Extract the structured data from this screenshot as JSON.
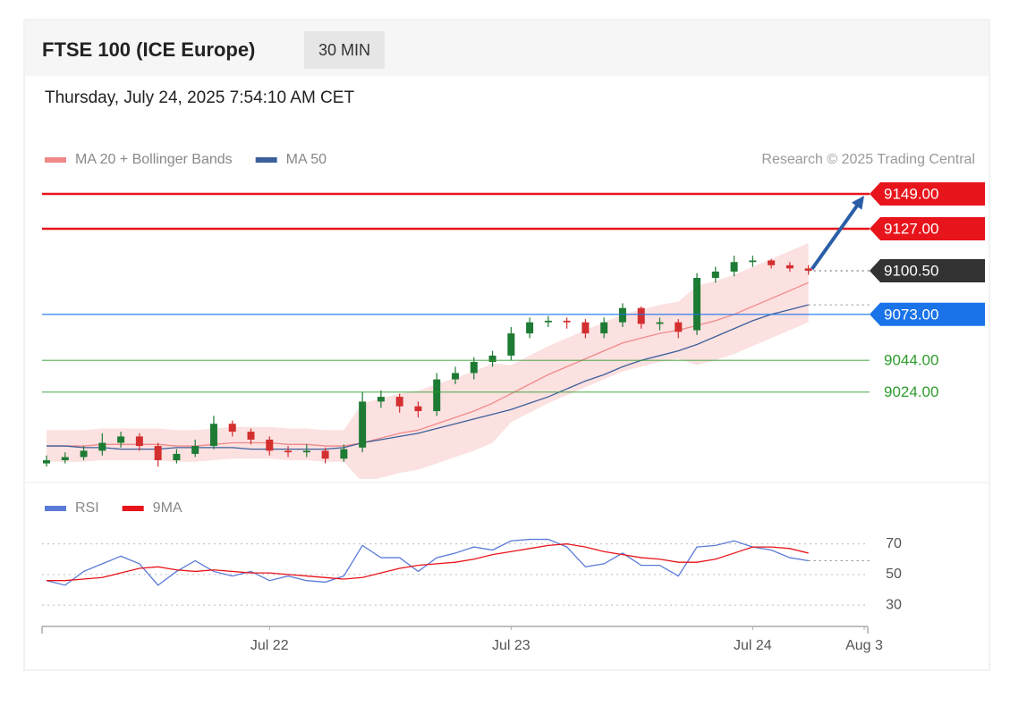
{
  "header": {
    "title": "FTSE 100 (ICE Europe)",
    "timeframe": "30 MIN",
    "datetime": "Thursday, July 24, 2025 7:54:10 AM CET",
    "credit": "Research © 2025 Trading Central"
  },
  "chart_data": [
    {
      "type": "candlestick",
      "x": [
        0,
        1,
        2,
        3,
        4,
        5,
        6,
        7,
        8,
        9,
        10,
        11,
        12,
        13,
        14,
        15,
        16,
        17,
        18,
        19,
        20,
        21,
        22,
        23,
        24,
        25,
        26,
        27,
        28,
        29,
        30,
        31,
        32,
        33,
        34,
        35,
        36,
        37,
        38,
        39,
        40,
        41
      ],
      "open": [
        8979,
        8981,
        8983,
        8987,
        8992,
        8996,
        8990,
        8981,
        8985,
        8990,
        9004,
        8999,
        8994,
        8987,
        8986,
        8987,
        8982,
        8989,
        9018,
        9021,
        9015,
        9012,
        9032,
        9036,
        9043,
        9047,
        9061,
        9068,
        9069,
        9068,
        9061,
        9068,
        9077,
        9067,
        9068,
        9063,
        9096,
        9100,
        9106,
        9107,
        9104,
        9102
      ],
      "high": [
        8984,
        8986,
        8990,
        8998,
        8999,
        8998,
        8992,
        8988,
        8994,
        9009,
        9006,
        9001,
        8996,
        8990,
        8991,
        8989,
        8991,
        9024,
        9025,
        9023,
        9018,
        9036,
        9040,
        9046,
        9050,
        9065,
        9071,
        9072,
        9071,
        9070,
        9071,
        9080,
        9078,
        9071,
        9070,
        9099,
        9103,
        9110,
        9110,
        9108,
        9106,
        9104
      ],
      "low": [
        8977,
        8979,
        8981,
        8984,
        8989,
        8987,
        8977,
        8979,
        8983,
        8988,
        8996,
        8991,
        8984,
        8983,
        8983,
        8979,
        8980,
        8986,
        9014,
        9011,
        9008,
        9009,
        9029,
        9032,
        9040,
        9044,
        9058,
        9065,
        9064,
        9058,
        9058,
        9065,
        9064,
        9063,
        9058,
        9060,
        9093,
        9097,
        9103,
        9102,
        9100,
        9098
      ],
      "close": [
        8981,
        8983,
        8987,
        8992,
        8996,
        8990,
        8981,
        8985,
        8990,
        9004,
        8999,
        8994,
        8987,
        8986,
        8987,
        8982,
        8988,
        9018,
        9021,
        9015,
        9012,
        9032,
        9036,
        9043,
        9047,
        9061,
        9068,
        9069,
        9068,
        9061,
        9068,
        9077,
        9067,
        9068,
        9062,
        9096,
        9100,
        9106,
        9107,
        9104,
        9102,
        9100.5
      ],
      "up_color": "#1e7b34",
      "down_color": "#d32f2f",
      "series": [
        {
          "name": "MA 20 + Bollinger Bands",
          "color": "#f08a8a",
          "band_color": "#fbdcdc",
          "values": [
            8990,
            8990,
            8990,
            8991,
            8991,
            8991,
            8991,
            8990,
            8990,
            8991,
            8992,
            8992,
            8992,
            8991,
            8991,
            8990,
            8990,
            8992,
            8995,
            8998,
            9000,
            9004,
            9008,
            9012,
            9017,
            9023,
            9029,
            9035,
            9040,
            9045,
            9050,
            9055,
            9058,
            9061,
            9063,
            9066,
            9069,
            9073,
            9078,
            9083,
            9088,
            9093
          ],
          "upper": [
            9000,
            9000,
            9000,
            9001,
            9001,
            9001,
            9001,
            9000,
            9000,
            9001,
            9002,
            9002,
            9002,
            9001,
            9001,
            9000,
            9000,
            9017,
            9020,
            9023,
            9025,
            9029,
            9033,
            9037,
            9042,
            9041,
            9047,
            9053,
            9058,
            9063,
            9068,
            9073,
            9076,
            9079,
            9081,
            9091,
            9094,
            9098,
            9103,
            9108,
            9113,
            9118
          ],
          "lower": [
            8980,
            8980,
            8980,
            8981,
            8981,
            8981,
            8981,
            8980,
            8980,
            8981,
            8982,
            8982,
            8982,
            8981,
            8981,
            8980,
            8980,
            8967,
            8970,
            8973,
            8975,
            8979,
            8983,
            8987,
            8992,
            9005,
            9011,
            9017,
            9022,
            9027,
            9032,
            9037,
            9040,
            9043,
            9045,
            9041,
            9044,
            9048,
            9053,
            9058,
            9063,
            9068
          ]
        },
        {
          "name": "MA 50",
          "color": "#3b5f9a",
          "values": [
            8990,
            8990,
            8989,
            8989,
            8988,
            8988,
            8988,
            8989,
            8989,
            8989,
            8989,
            8988,
            8988,
            8988,
            8988,
            8988,
            8989,
            8992,
            8994,
            8996,
            8998,
            9001,
            9004,
            9007,
            9010,
            9013,
            9017,
            9021,
            9026,
            9031,
            9035,
            9040,
            9044,
            9047,
            9050,
            9054,
            9059,
            9064,
            9069,
            9073,
            9076,
            9079
          ]
        }
      ],
      "levels": [
        {
          "value": 9149,
          "value_label": "9149.00",
          "color": "#e8141b",
          "boxed": true,
          "dotted": false
        },
        {
          "value": 9127,
          "value_label": "9127.00",
          "color": "#e8141b",
          "boxed": true,
          "dotted": false
        },
        {
          "value": 9100.5,
          "value_label": "9100.50",
          "color": "#333333",
          "boxed": true,
          "dotted": true
        },
        {
          "value": 9073,
          "value_label": "9073.00",
          "color": "#1a73e8",
          "boxed": true,
          "dotted": false
        },
        {
          "value": 9044,
          "value_label": "9044.00",
          "color": "#2e9c2e",
          "boxed": false,
          "dotted": false
        },
        {
          "value": 9024,
          "value_label": "9024.00",
          "color": "#2e9c2e",
          "boxed": false,
          "dotted": false
        }
      ],
      "xlim": [
        0,
        44
      ],
      "ylim": [
        8972,
        9158
      ]
    },
    {
      "type": "line",
      "x": [
        0,
        1,
        2,
        3,
        4,
        5,
        6,
        7,
        8,
        9,
        10,
        11,
        12,
        13,
        14,
        15,
        16,
        17,
        18,
        19,
        20,
        21,
        22,
        23,
        24,
        25,
        26,
        27,
        28,
        29,
        30,
        31,
        32,
        33,
        34,
        35,
        36,
        37,
        38,
        39,
        40,
        41
      ],
      "series": [
        {
          "name": "RSI",
          "color": "#5b7bd8",
          "values": [
            46,
            43,
            52,
            57,
            62,
            57,
            43,
            52,
            59,
            52,
            49,
            52,
            46,
            49,
            46,
            45,
            49,
            69,
            61,
            61,
            52,
            61,
            64,
            68,
            66,
            72,
            73,
            73,
            68,
            55,
            57,
            64,
            56,
            56,
            49,
            68,
            69,
            72,
            68,
            66,
            61,
            59
          ]
        },
        {
          "name": "9MA",
          "color": "#e8141b",
          "values": [
            46,
            46,
            47,
            48,
            51,
            54,
            55,
            53,
            52,
            53,
            52,
            51,
            51,
            50,
            49,
            48,
            47,
            48,
            51,
            54,
            56,
            57,
            58,
            60,
            63,
            65,
            67,
            69,
            70,
            68,
            65,
            63,
            61,
            60,
            58,
            58,
            60,
            64,
            68,
            68,
            67,
            64
          ]
        }
      ],
      "xlim": [
        0,
        44
      ],
      "xticks": [
        {
          "value": 12,
          "label": "Jul 22"
        },
        {
          "value": 25,
          "label": "Jul 23"
        },
        {
          "value": 38,
          "label": "Jul 24"
        },
        {
          "value": 44,
          "label": "Aug 3"
        }
      ],
      "ylim": [
        16,
        78
      ],
      "yticks": [
        30,
        50,
        70
      ],
      "grid": true
    }
  ]
}
